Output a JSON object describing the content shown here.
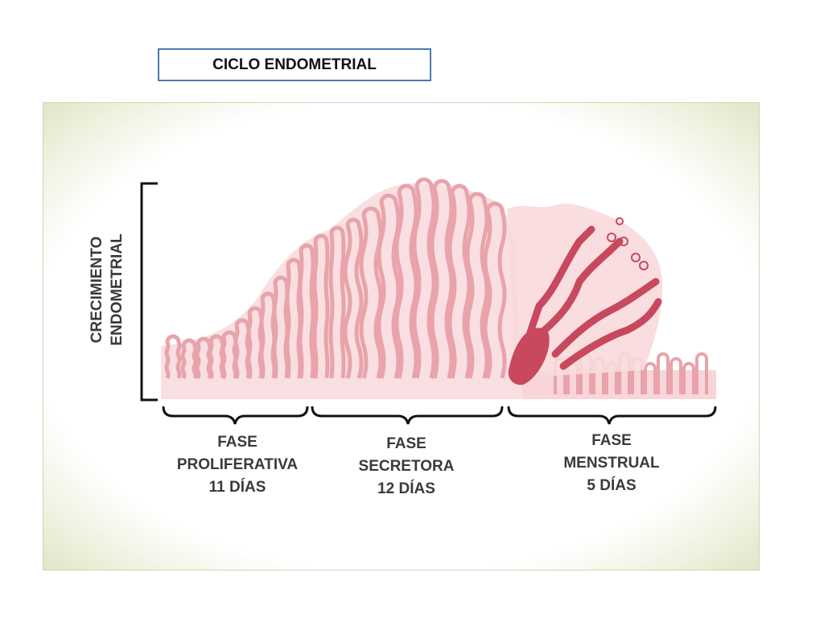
{
  "title": "CICLO ENDOMETRIAL",
  "y_axis": {
    "line1": "CRECIMIENTO",
    "line2": "ENDOMETRIAL"
  },
  "phases": [
    {
      "line1": "FASE",
      "line2": "PROLIFERATIVA",
      "duration": "11 DÍAS"
    },
    {
      "line1": "FASE",
      "line2": "SECRETORA",
      "duration": "12 DÍAS"
    },
    {
      "line1": "FASE",
      "line2": "MENSTRUAL",
      "duration": "5 DÍAS"
    }
  ],
  "colors": {
    "tissue": "#f6d3d6",
    "gland": "#e8a3ab",
    "blood": "#c8485e",
    "axis": "#111111",
    "title_border": "#4a7ab0"
  }
}
